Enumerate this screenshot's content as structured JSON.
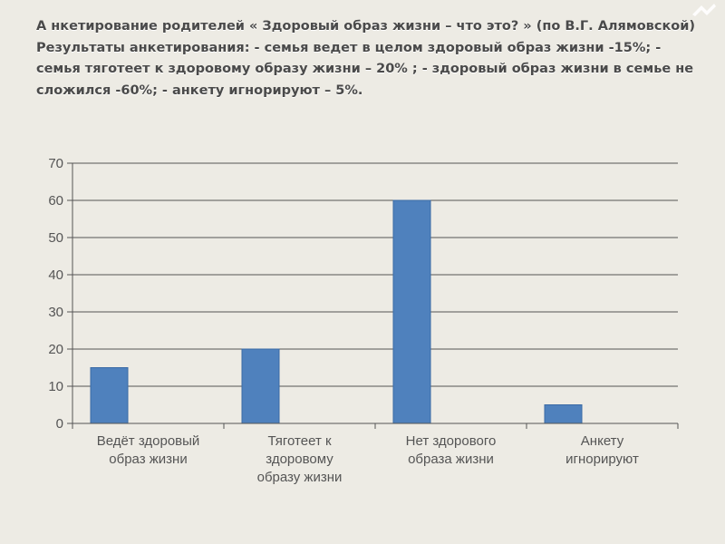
{
  "slide": {
    "title": "А нкетирование родителей « Здоровый образ жизни – что это? » (по В.Г. Алямовской) Результаты анкетирования: - семья ведет в целом здоровый образ жизни -15%; - семья тяготеет к здоровому образу жизни – 20% ; - здоровый образ жизни в семье не сложился -60%; - анкету игнорируют – 5%."
  },
  "colors": {
    "background": "#edebe4",
    "bar": "#4f81bd",
    "grid": "#555555",
    "text": "#555555"
  },
  "chart_data": {
    "type": "bar",
    "categories": [
      [
        "Ведёт здоровый",
        "образ жизни"
      ],
      [
        "Тяготеет к",
        "здоровому",
        "образу жизни"
      ],
      [
        "Нет здорового",
        "образа жизни"
      ],
      [
        "Анкету",
        "игнорируют"
      ]
    ],
    "values": [
      15,
      20,
      60,
      5
    ],
    "ylim": [
      0,
      70
    ],
    "yticks": [
      0,
      10,
      20,
      30,
      40,
      50,
      60,
      70
    ],
    "grid": true,
    "legend": false,
    "title": "",
    "xlabel": "",
    "ylabel": ""
  }
}
